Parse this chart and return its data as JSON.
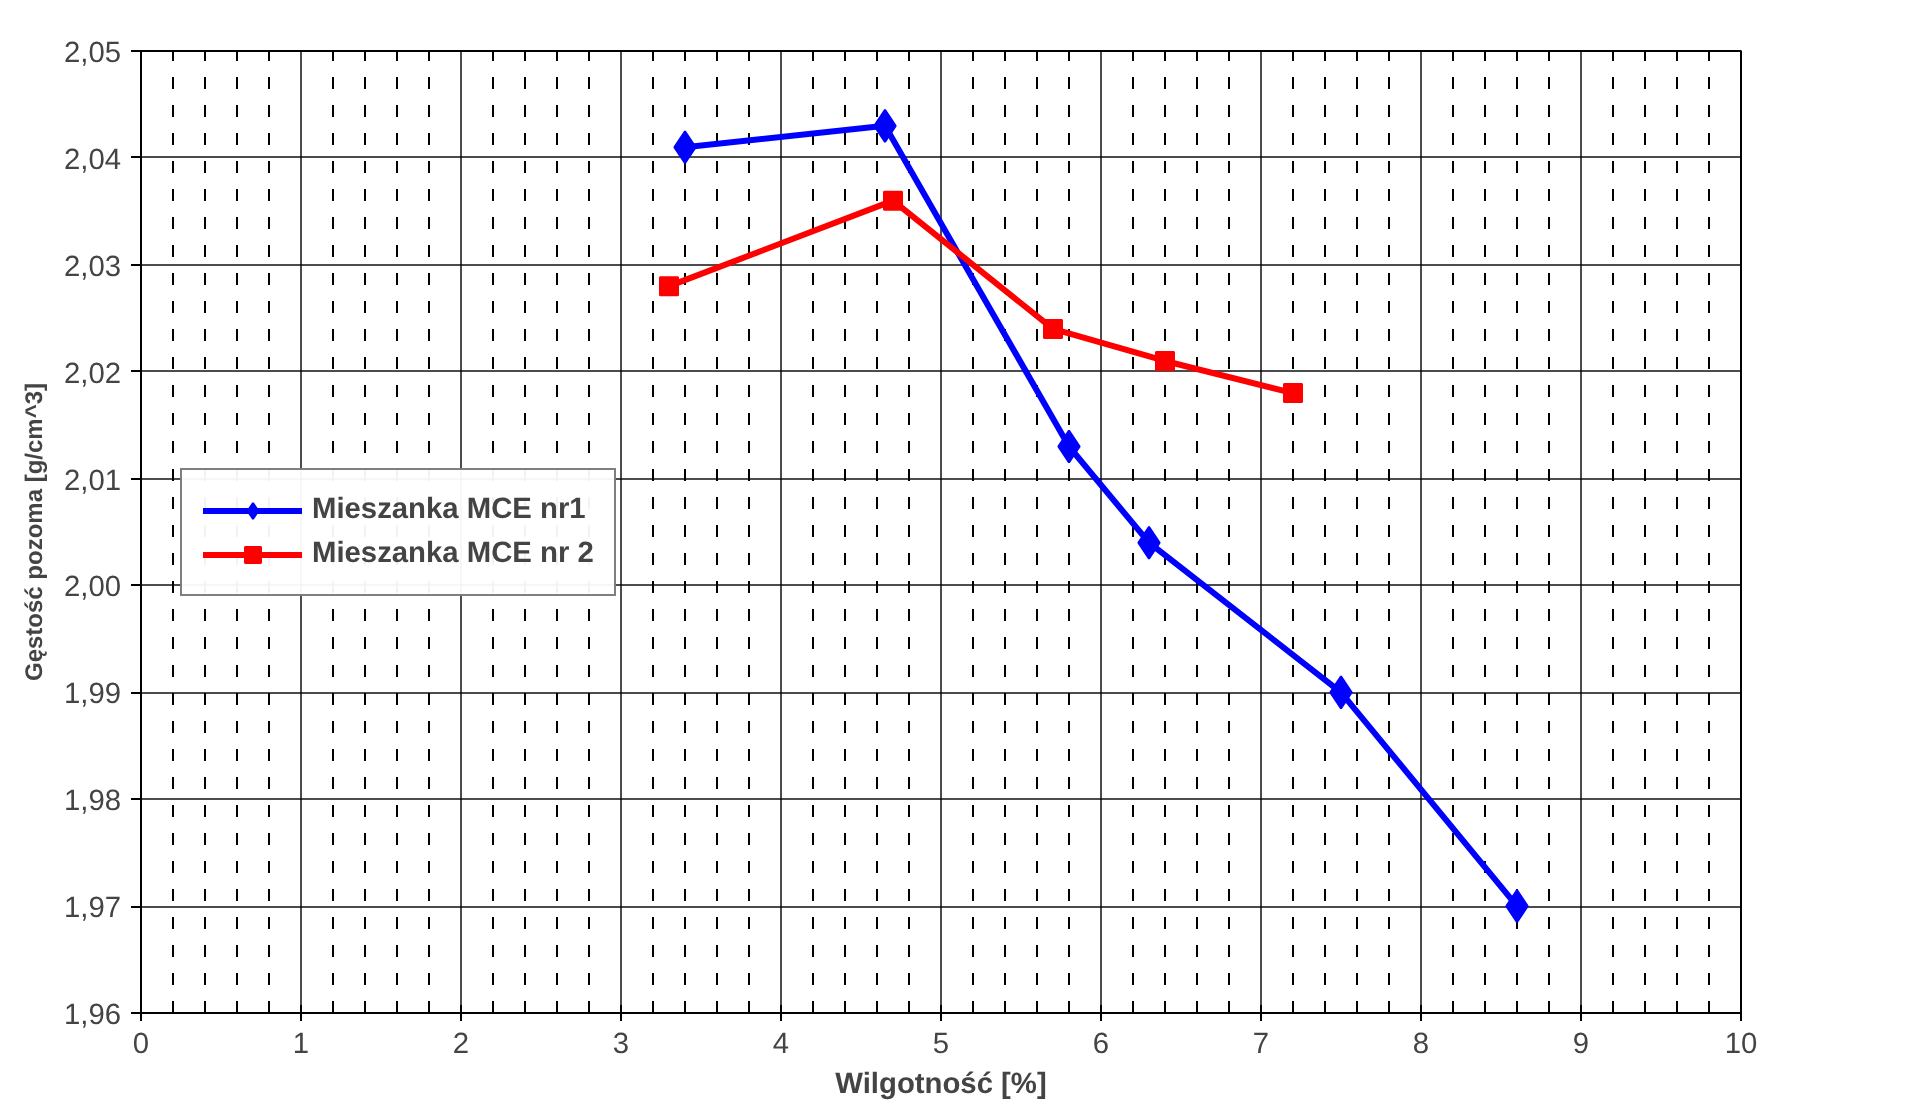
{
  "chart_data": {
    "type": "line",
    "xlabel": "Wilgotność [%]",
    "ylabel": "Gęstość pozoma [g/cm^3]",
    "xlim": [
      0,
      10
    ],
    "xticks": [
      0,
      1,
      2,
      3,
      4,
      5,
      6,
      7,
      8,
      9,
      10
    ],
    "ylim": [
      1.96,
      2.05
    ],
    "yticks": [
      {
        "value": 1.96,
        "label": "1,96"
      },
      {
        "value": 1.97,
        "label": "1,97"
      },
      {
        "value": 1.98,
        "label": "1,98"
      },
      {
        "value": 1.99,
        "label": "1,99"
      },
      {
        "value": 2.0,
        "label": "2,00"
      },
      {
        "value": 2.01,
        "label": "2,01"
      },
      {
        "value": 2.02,
        "label": "2,02"
      },
      {
        "value": 2.03,
        "label": "2,03"
      },
      {
        "value": 2.04,
        "label": "2,04"
      },
      {
        "value": 2.05,
        "label": "2,05"
      }
    ],
    "grid": true,
    "legend": "left",
    "line_style": "solid",
    "series": [
      {
        "name": "Mieszanka MCE nr1",
        "color": "#0000ff",
        "marker": "diamond",
        "x": [
          3.4,
          4.65,
          5.8,
          6.3,
          7.5,
          8.6
        ],
        "values": [
          2.041,
          2.043,
          2.013,
          2.004,
          1.99,
          1.97
        ]
      },
      {
        "name": "Mieszanka MCE nr 2",
        "color": "#ff0000",
        "marker": "square",
        "x": [
          3.3,
          4.7,
          5.7,
          6.4,
          7.2
        ],
        "values": [
          2.028,
          2.036,
          2.024,
          2.021,
          2.018
        ]
      }
    ]
  }
}
